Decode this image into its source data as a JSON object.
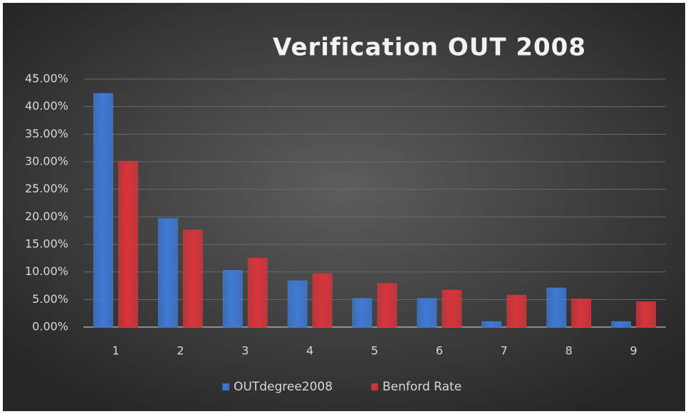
{
  "chart_data": {
    "type": "bar",
    "title": "Verification OUT 2008",
    "categories": [
      "1",
      "2",
      "3",
      "4",
      "5",
      "6",
      "7",
      "8",
      "9"
    ],
    "series": [
      {
        "name": "OUTdegree2008",
        "color": "#3f7ad6",
        "values": [
          42.4,
          19.7,
          10.3,
          8.4,
          5.2,
          5.2,
          1.0,
          7.1,
          1.0
        ]
      },
      {
        "name": "Benford Rate",
        "color": "#d8353b",
        "values": [
          30.1,
          17.6,
          12.5,
          9.7,
          7.9,
          6.7,
          5.8,
          5.1,
          4.6
        ]
      }
    ],
    "ylim": [
      0,
      45
    ],
    "yticks": [
      {
        "value": 0,
        "label": "0.00%"
      },
      {
        "value": 5,
        "label": "5.00%"
      },
      {
        "value": 10,
        "label": "10.00%"
      },
      {
        "value": 15,
        "label": "15.00%"
      },
      {
        "value": 20,
        "label": "20.00%"
      },
      {
        "value": 25,
        "label": "25.00%"
      },
      {
        "value": 30,
        "label": "30.00%"
      },
      {
        "value": 35,
        "label": "35.00%"
      },
      {
        "value": 40,
        "label": "40.00%"
      },
      {
        "value": 45,
        "label": "45.00%"
      }
    ],
    "grid": true,
    "legend": "bottom"
  }
}
